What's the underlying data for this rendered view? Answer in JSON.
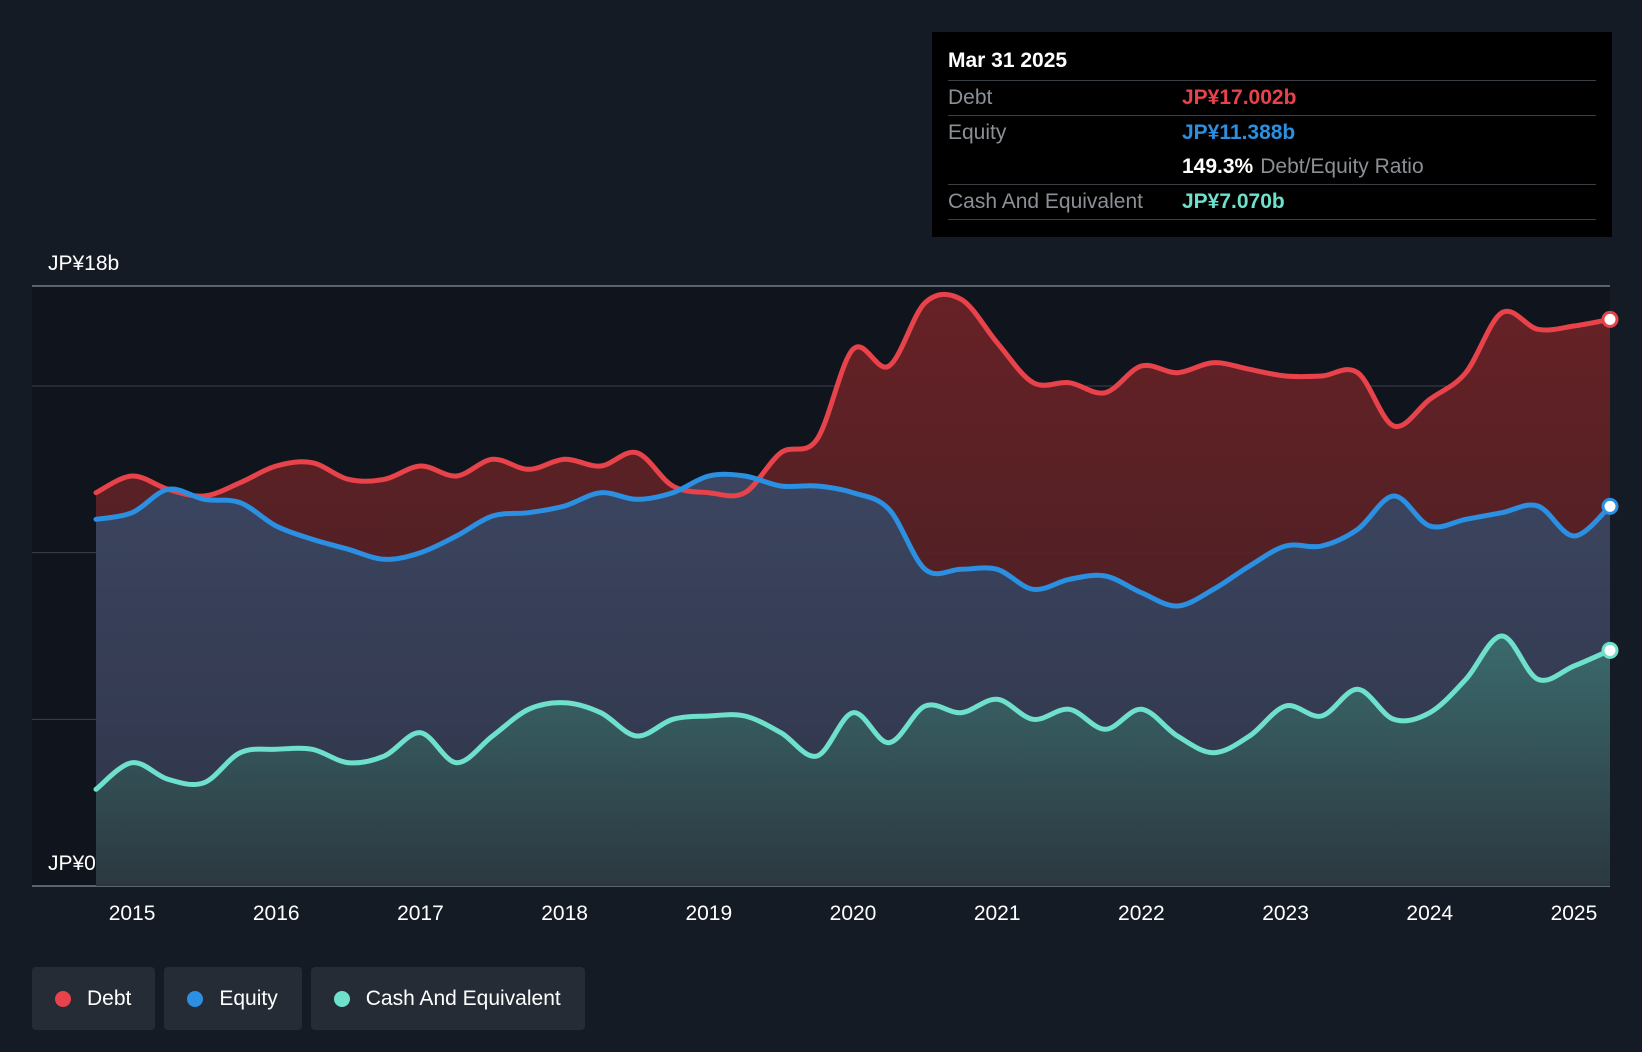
{
  "chart_data": {
    "type": "area",
    "ylabel_top": "JP¥18b",
    "ylabel_bottom": "JP¥0",
    "ylim": [
      0,
      18
    ],
    "x_ticks": [
      "2015",
      "2016",
      "2017",
      "2018",
      "2019",
      "2020",
      "2021",
      "2022",
      "2023",
      "2024",
      "2025"
    ],
    "series": [
      {
        "name": "Debt",
        "color": "#e8424b",
        "points": [
          [
            2014.75,
            11.8
          ],
          [
            2015.0,
            12.3
          ],
          [
            2015.25,
            11.9
          ],
          [
            2015.5,
            11.7
          ],
          [
            2015.75,
            12.1
          ],
          [
            2016.0,
            12.6
          ],
          [
            2016.25,
            12.7
          ],
          [
            2016.5,
            12.2
          ],
          [
            2016.75,
            12.2
          ],
          [
            2017.0,
            12.6
          ],
          [
            2017.25,
            12.3
          ],
          [
            2017.5,
            12.8
          ],
          [
            2017.75,
            12.5
          ],
          [
            2018.0,
            12.8
          ],
          [
            2018.25,
            12.6
          ],
          [
            2018.5,
            13.0
          ],
          [
            2018.75,
            12.0
          ],
          [
            2019.0,
            11.8
          ],
          [
            2019.25,
            11.8
          ],
          [
            2019.5,
            13.0
          ],
          [
            2019.75,
            13.4
          ],
          [
            2020.0,
            16.1
          ],
          [
            2020.25,
            15.6
          ],
          [
            2020.5,
            17.5
          ],
          [
            2020.75,
            17.6
          ],
          [
            2021.0,
            16.3
          ],
          [
            2021.25,
            15.1
          ],
          [
            2021.5,
            15.1
          ],
          [
            2021.75,
            14.8
          ],
          [
            2022.0,
            15.6
          ],
          [
            2022.25,
            15.4
          ],
          [
            2022.5,
            15.7
          ],
          [
            2022.75,
            15.5
          ],
          [
            2023.0,
            15.3
          ],
          [
            2023.25,
            15.3
          ],
          [
            2023.5,
            15.4
          ],
          [
            2023.75,
            13.8
          ],
          [
            2024.0,
            14.6
          ],
          [
            2024.25,
            15.4
          ],
          [
            2024.5,
            17.2
          ],
          [
            2024.75,
            16.7
          ],
          [
            2025.0,
            16.8
          ],
          [
            2025.25,
            17.0
          ]
        ]
      },
      {
        "name": "Equity",
        "color": "#2b8fe2",
        "points": [
          [
            2014.75,
            11.0
          ],
          [
            2015.0,
            11.2
          ],
          [
            2015.25,
            11.9
          ],
          [
            2015.5,
            11.6
          ],
          [
            2015.75,
            11.5
          ],
          [
            2016.0,
            10.8
          ],
          [
            2016.25,
            10.4
          ],
          [
            2016.5,
            10.1
          ],
          [
            2016.75,
            9.8
          ],
          [
            2017.0,
            10.0
          ],
          [
            2017.25,
            10.5
          ],
          [
            2017.5,
            11.1
          ],
          [
            2017.75,
            11.2
          ],
          [
            2018.0,
            11.4
          ],
          [
            2018.25,
            11.8
          ],
          [
            2018.5,
            11.6
          ],
          [
            2018.75,
            11.8
          ],
          [
            2019.0,
            12.3
          ],
          [
            2019.25,
            12.3
          ],
          [
            2019.5,
            12.0
          ],
          [
            2019.75,
            12.0
          ],
          [
            2020.0,
            11.8
          ],
          [
            2020.25,
            11.3
          ],
          [
            2020.5,
            9.5
          ],
          [
            2020.75,
            9.5
          ],
          [
            2021.0,
            9.5
          ],
          [
            2021.25,
            8.9
          ],
          [
            2021.5,
            9.2
          ],
          [
            2021.75,
            9.3
          ],
          [
            2022.0,
            8.8
          ],
          [
            2022.25,
            8.4
          ],
          [
            2022.5,
            8.9
          ],
          [
            2022.75,
            9.6
          ],
          [
            2023.0,
            10.2
          ],
          [
            2023.25,
            10.2
          ],
          [
            2023.5,
            10.7
          ],
          [
            2023.75,
            11.7
          ],
          [
            2024.0,
            10.8
          ],
          [
            2024.25,
            11.0
          ],
          [
            2024.5,
            11.2
          ],
          [
            2024.75,
            11.4
          ],
          [
            2025.0,
            10.5
          ],
          [
            2025.25,
            11.388
          ]
        ]
      },
      {
        "name": "Cash And Equivalent",
        "color": "#6ee0cc",
        "points": [
          [
            2014.75,
            2.9
          ],
          [
            2015.0,
            3.7
          ],
          [
            2015.25,
            3.2
          ],
          [
            2015.5,
            3.1
          ],
          [
            2015.75,
            4.0
          ],
          [
            2016.0,
            4.1
          ],
          [
            2016.25,
            4.1
          ],
          [
            2016.5,
            3.7
          ],
          [
            2016.75,
            3.9
          ],
          [
            2017.0,
            4.6
          ],
          [
            2017.25,
            3.7
          ],
          [
            2017.5,
            4.5
          ],
          [
            2017.75,
            5.3
          ],
          [
            2018.0,
            5.5
          ],
          [
            2018.25,
            5.2
          ],
          [
            2018.5,
            4.5
          ],
          [
            2018.75,
            5.0
          ],
          [
            2019.0,
            5.1
          ],
          [
            2019.25,
            5.1
          ],
          [
            2019.5,
            4.6
          ],
          [
            2019.75,
            3.9
          ],
          [
            2020.0,
            5.2
          ],
          [
            2020.25,
            4.3
          ],
          [
            2020.5,
            5.4
          ],
          [
            2020.75,
            5.2
          ],
          [
            2021.0,
            5.6
          ],
          [
            2021.25,
            5.0
          ],
          [
            2021.5,
            5.3
          ],
          [
            2021.75,
            4.7
          ],
          [
            2022.0,
            5.3
          ],
          [
            2022.25,
            4.5
          ],
          [
            2022.5,
            4.0
          ],
          [
            2022.75,
            4.5
          ],
          [
            2023.0,
            5.4
          ],
          [
            2023.25,
            5.1
          ],
          [
            2023.5,
            5.9
          ],
          [
            2023.75,
            5.0
          ],
          [
            2024.0,
            5.2
          ],
          [
            2024.25,
            6.2
          ],
          [
            2024.5,
            7.5
          ],
          [
            2024.75,
            6.2
          ],
          [
            2025.0,
            6.6
          ],
          [
            2025.25,
            7.07
          ]
        ]
      }
    ],
    "legend": "bottom-left",
    "grid": true
  },
  "tooltip": {
    "date": "Mar 31 2025",
    "debt_label": "Debt",
    "debt_value": "JP¥17.002b",
    "equity_label": "Equity",
    "equity_value": "JP¥11.388b",
    "ratio_value": "149.3%",
    "ratio_label": "Debt/Equity Ratio",
    "cash_label": "Cash And Equivalent",
    "cash_value": "JP¥7.070b"
  },
  "legend": {
    "items": [
      {
        "label": "Debt",
        "color": "#e8424b"
      },
      {
        "label": "Equity",
        "color": "#2b8fe2"
      },
      {
        "label": "Cash And Equivalent",
        "color": "#6ee0cc"
      }
    ]
  }
}
